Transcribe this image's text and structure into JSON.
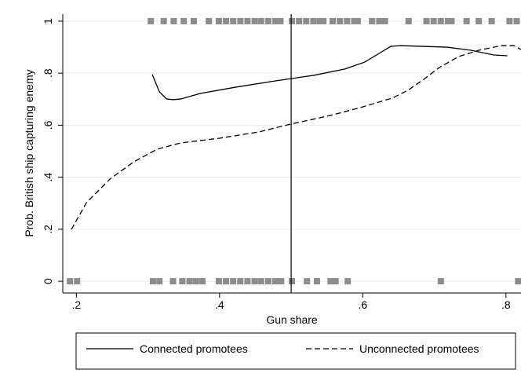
{
  "chart_data": {
    "type": "line",
    "x_label": "Gun share",
    "y_label": "Prob. British ship capturing enemy",
    "xlim": [
      0.181,
      0.821
    ],
    "ylim": [
      -0.045,
      1.027
    ],
    "xticks": [
      {
        "value": 0.2,
        "label": ".2"
      },
      {
        "value": 0.4,
        "label": ".4"
      },
      {
        "value": 0.6,
        "label": ".6"
      },
      {
        "value": 0.8,
        "label": ".8"
      }
    ],
    "yticks": [
      0,
      {
        "value": 0.2,
        "label": ".2"
      },
      {
        "value": 0.4,
        "label": ".4"
      },
      {
        "value": 0.6,
        "label": ".6"
      },
      {
        "value": 0.8,
        "label": ".8"
      },
      1
    ],
    "grid": true,
    "xline": 0.5,
    "legend": "bottom",
    "series": [
      {
        "type": "line",
        "name": "Connected promotees",
        "color": "#000000",
        "dash": "solid",
        "x": [
          0.306,
          0.316,
          0.326,
          0.335,
          0.346,
          0.373,
          0.422,
          0.477,
          0.532,
          0.575,
          0.603,
          0.621,
          0.639,
          0.652,
          0.685,
          0.718,
          0.751,
          0.783,
          0.802
        ],
        "values": [
          0.795,
          0.728,
          0.701,
          0.698,
          0.701,
          0.722,
          0.746,
          0.77,
          0.792,
          0.816,
          0.843,
          0.873,
          0.903,
          0.906,
          0.903,
          0.9,
          0.888,
          0.87,
          0.867
        ]
      },
      {
        "type": "line",
        "name": "Unconnected promotees",
        "color": "#000000",
        "dash": "dashed",
        "x": [
          0.193,
          0.214,
          0.247,
          0.28,
          0.313,
          0.346,
          0.4,
          0.455,
          0.499,
          0.554,
          0.597,
          0.641,
          0.663,
          0.685,
          0.707,
          0.734,
          0.762,
          0.794,
          0.811,
          0.821
        ],
        "values": [
          0.199,
          0.302,
          0.393,
          0.459,
          0.508,
          0.532,
          0.55,
          0.574,
          0.604,
          0.637,
          0.668,
          0.704,
          0.734,
          0.776,
          0.822,
          0.864,
          0.888,
          0.906,
          0.906,
          0.891
        ]
      },
      {
        "type": "scatter",
        "color": "#8c8c8c",
        "x": [
          0.304,
          0.322,
          0.336,
          0.35,
          0.364,
          0.385,
          0.399,
          0.409,
          0.419,
          0.429,
          0.439,
          0.449,
          0.458,
          0.468,
          0.478,
          0.485,
          0.501,
          0.511,
          0.521,
          0.531,
          0.54,
          0.545,
          0.558,
          0.568,
          0.578,
          0.588,
          0.593,
          0.613,
          0.623,
          0.631,
          0.664,
          0.689,
          0.699,
          0.709,
          0.719,
          0.724,
          0.745,
          0.762,
          0.78,
          0.805,
          0.815
        ],
        "values": [
          1,
          1,
          1,
          1,
          1,
          1,
          1,
          1,
          1,
          1,
          1,
          1,
          1,
          1,
          1,
          1,
          1,
          1,
          1,
          1,
          1,
          1,
          1,
          1,
          1,
          1,
          1,
          1,
          1,
          1,
          1,
          1,
          1,
          1,
          1,
          1,
          1,
          1,
          1,
          1,
          1
        ]
      },
      {
        "type": "scatter",
        "color": "#8c8c8c",
        "x": [
          0.191,
          0.201,
          0.307,
          0.316,
          0.335,
          0.348,
          0.358,
          0.367,
          0.376,
          0.399,
          0.409,
          0.419,
          0.429,
          0.439,
          0.449,
          0.458,
          0.468,
          0.478,
          0.486,
          0.501,
          0.522,
          0.536,
          0.555,
          0.562,
          0.579,
          0.709,
          0.817
        ],
        "values": [
          0,
          0,
          0,
          0,
          0,
          0,
          0,
          0,
          0,
          0,
          0,
          0,
          0,
          0,
          0,
          0,
          0,
          0,
          0,
          0,
          0,
          0,
          0,
          0,
          0,
          0,
          0
        ]
      }
    ]
  }
}
